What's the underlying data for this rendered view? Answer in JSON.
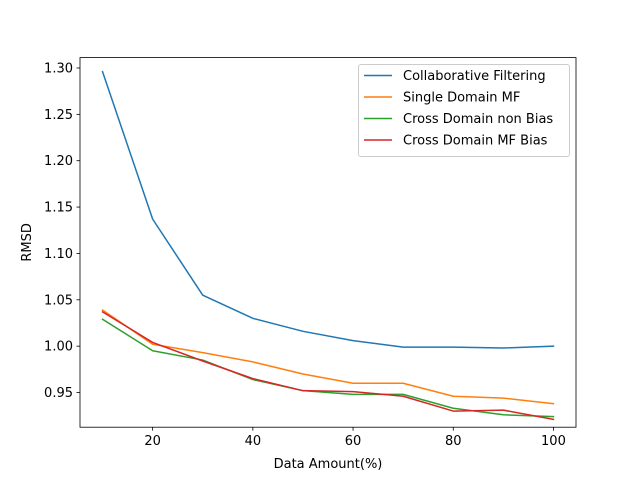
{
  "chart_data": {
    "type": "line",
    "title": "",
    "xlabel": "Data Amount(%)",
    "ylabel": "RMSD",
    "xlim": [
      5.5,
      104.5
    ],
    "ylim": [
      0.9126,
      1.3112
    ],
    "x": [
      10,
      20,
      30,
      40,
      50,
      60,
      70,
      80,
      90,
      100
    ],
    "xticks": [
      20,
      40,
      60,
      80,
      100
    ],
    "xtick_labels": [
      "20",
      "40",
      "60",
      "80",
      "100"
    ],
    "yticks": [
      0.95,
      1.0,
      1.05,
      1.1,
      1.15,
      1.2,
      1.25,
      1.3
    ],
    "ytick_labels": [
      "0.95",
      "1.00",
      "1.05",
      "1.10",
      "1.15",
      "1.20",
      "1.25",
      "1.30"
    ],
    "grid": false,
    "legend_position": "top-right",
    "series": [
      {
        "name": "Collaborative Filtering",
        "color": "#1f77b4",
        "values": [
          1.296,
          1.137,
          1.055,
          1.03,
          1.016,
          1.006,
          0.999,
          0.999,
          0.998,
          1.0
        ]
      },
      {
        "name": "Single Domain MF",
        "color": "#ff7f0e",
        "values": [
          1.039,
          1.002,
          0.993,
          0.983,
          0.97,
          0.96,
          0.96,
          0.946,
          0.944,
          0.938
        ]
      },
      {
        "name": "Cross Domain non Bias",
        "color": "#2ca02c",
        "values": [
          1.029,
          0.995,
          0.985,
          0.964,
          0.952,
          0.948,
          0.948,
          0.933,
          0.926,
          0.924
        ]
      },
      {
        "name": "Cross Domain MF Bias",
        "color": "#d62728",
        "values": [
          1.037,
          1.004,
          0.984,
          0.965,
          0.952,
          0.951,
          0.946,
          0.93,
          0.931,
          0.921
        ]
      }
    ]
  }
}
